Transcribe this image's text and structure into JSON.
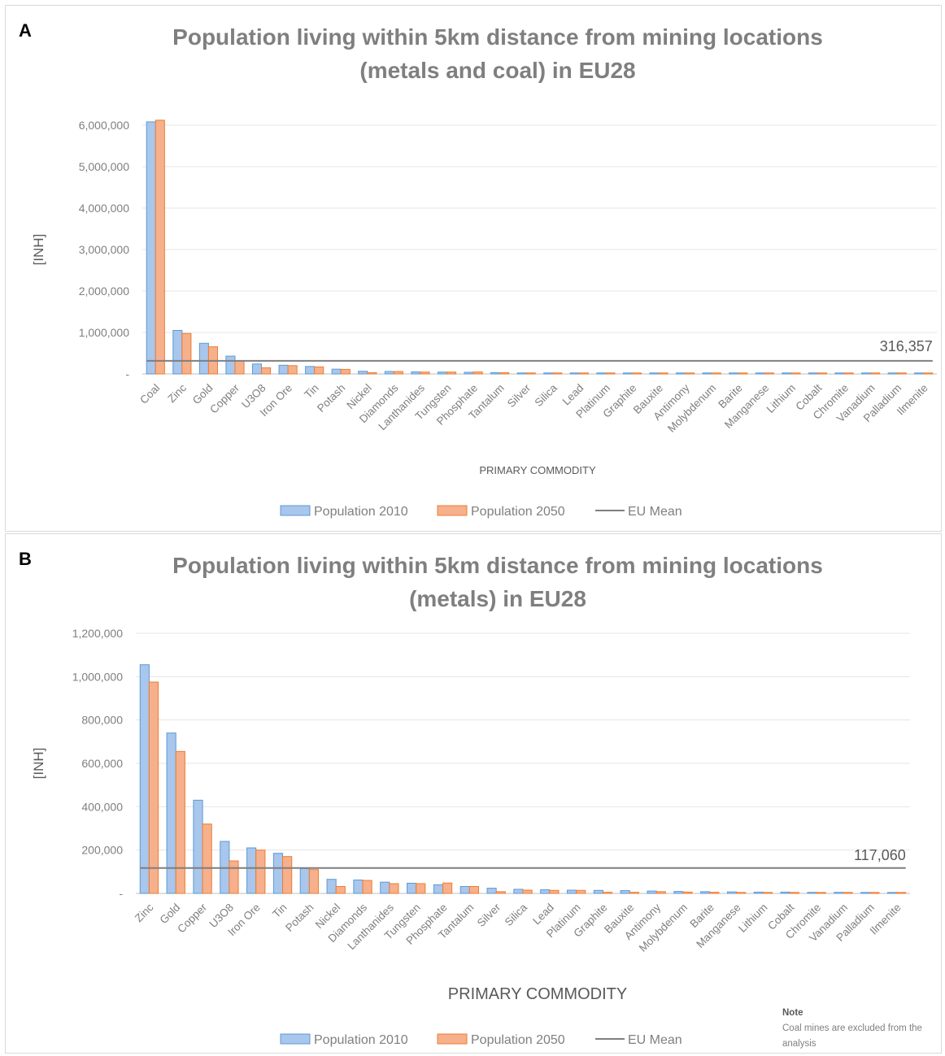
{
  "figure": {
    "panel_a_letter": "A",
    "panel_b_letter": "B",
    "note_title": "Note",
    "note_text": "Coal mines are excluded from the analysis"
  },
  "colors": {
    "series_2010_fill": "#a9c6ec",
    "series_2010_edge": "#5b9bd5",
    "series_2050_fill": "#f6b08c",
    "series_2050_edge": "#ed7d31",
    "mean_line": "#7f7f7f",
    "gridline": "#e5e5e5",
    "text": "#7f7f7f"
  },
  "chart_data": [
    {
      "type": "bar",
      "title": "Population living within 5km distance from mining locations (metals and coal) in EU28",
      "title_lines": [
        "Population living within 5km distance from mining locations",
        "(metals and coal) in EU28"
      ],
      "xlabel": "PRIMARY COMMODITY",
      "ylabel": "[INH]",
      "ylim": [
        0,
        6000000
      ],
      "yticks": [
        0,
        1000000,
        2000000,
        3000000,
        4000000,
        5000000,
        6000000
      ],
      "ytick_labels": [
        "-",
        "1,000,000",
        "2,000,000",
        "3,000,000",
        "4,000,000",
        "5,000,000",
        "6,000,000"
      ],
      "grid": true,
      "legend": "bottom",
      "categories": [
        "Coal",
        "Zinc",
        "Gold",
        "Copper",
        "U3O8",
        "Iron Ore",
        "Tin",
        "Potash",
        "Nickel",
        "Diamonds",
        "Lanthanides",
        "Tungsten",
        "Phosphate",
        "Tantalum",
        "Silver",
        "Silica",
        "Lead",
        "Platinum",
        "Graphite",
        "Bauxite",
        "Antimony",
        "Molybdenum",
        "Barite",
        "Manganese",
        "Lithium",
        "Cobalt",
        "Chromite",
        "Vanadium",
        "Palladium",
        "Ilmenite"
      ],
      "series": [
        {
          "name": "Population 2010",
          "values": [
            6080000,
            1050000,
            740000,
            430000,
            240000,
            210000,
            180000,
            115000,
            65000,
            60000,
            50000,
            45000,
            40000,
            30000,
            22000,
            18000,
            16000,
            15000,
            14000,
            13000,
            12000,
            10000,
            9000,
            8000,
            7000,
            7000,
            6000,
            5000,
            5000,
            4000
          ]
        },
        {
          "name": "Population 2050",
          "values": [
            6120000,
            975000,
            655000,
            320000,
            150000,
            200000,
            170000,
            110000,
            30000,
            58000,
            45000,
            45000,
            48000,
            30000,
            8000,
            14000,
            14000,
            14000,
            5000,
            5000,
            8000,
            6000,
            5000,
            4000,
            4000,
            4000,
            3000,
            3000,
            3000,
            3000
          ]
        }
      ],
      "mean": {
        "name": "EU Mean",
        "value": 316357,
        "label": "316,357"
      }
    },
    {
      "type": "bar",
      "title": "Population living within 5km distance from mining locations (metals) in EU28",
      "title_lines": [
        "Population living within 5km distance from mining locations",
        "(metals) in EU28"
      ],
      "xlabel": "PRIMARY COMMODITY",
      "ylabel": "[INH]",
      "ylim": [
        0,
        1200000
      ],
      "yticks": [
        0,
        200000,
        400000,
        600000,
        800000,
        1000000,
        1200000
      ],
      "ytick_labels": [
        "-",
        "200,000",
        "400,000",
        "600,000",
        "800,000",
        "1,000,000",
        "1,200,000"
      ],
      "grid": true,
      "legend": "bottom",
      "categories": [
        "Zinc",
        "Gold",
        "Copper",
        "U3O8",
        "Iron Ore",
        "Tin",
        "Potash",
        "Nickel",
        "Diamonds",
        "Lanthanides",
        "Tungsten",
        "Phosphate",
        "Tantalum",
        "Silver",
        "Silica",
        "Lead",
        "Platinum",
        "Graphite",
        "Bauxite",
        "Antimony",
        "Molybdenum",
        "Barite",
        "Manganese",
        "Lithium",
        "Cobalt",
        "Chromite",
        "Vanadium",
        "Palladium",
        "Ilmenite"
      ],
      "series": [
        {
          "name": "Population 2010",
          "values": [
            1055000,
            740000,
            430000,
            240000,
            210000,
            185000,
            115000,
            65000,
            62000,
            52000,
            47000,
            40000,
            32000,
            24000,
            19000,
            17000,
            15000,
            14000,
            13000,
            11000,
            9000,
            8000,
            7000,
            6000,
            6000,
            5000,
            5000,
            4000,
            4000
          ]
        },
        {
          "name": "Population 2050",
          "values": [
            975000,
            655000,
            320000,
            150000,
            200000,
            170000,
            110000,
            32000,
            60000,
            45000,
            45000,
            48000,
            32000,
            8000,
            15000,
            14000,
            14000,
            5000,
            5000,
            8000,
            6000,
            5000,
            4000,
            4000,
            4000,
            3000,
            3000,
            3000,
            3000
          ]
        }
      ],
      "mean": {
        "name": "EU Mean",
        "value": 117060,
        "label": "117,060"
      }
    }
  ]
}
